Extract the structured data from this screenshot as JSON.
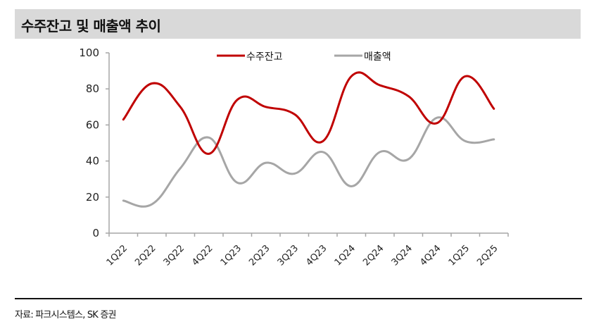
{
  "title": "수주잔고 및 매출액 추이",
  "footer": "자료: 파크시스템스, SK 증권",
  "colors": {
    "backlog": "#c00000",
    "revenue": "#a6a6a6",
    "title_bg": "#d9d9d9"
  },
  "chart_data": {
    "type": "line",
    "title": "수주잔고 및 매출액 추이",
    "xlabel": "",
    "ylabel": "",
    "ylim": [
      0,
      100
    ],
    "yticks": [
      0,
      20,
      40,
      60,
      80,
      100
    ],
    "grid": false,
    "legend_position": "top",
    "categories": [
      "1Q22",
      "2Q22",
      "3Q22",
      "4Q22",
      "1Q23",
      "2Q23",
      "3Q23",
      "4Q23",
      "1Q24",
      "2Q24",
      "3Q24",
      "4Q24",
      "1Q25",
      "2Q25"
    ],
    "series": [
      {
        "name": "수주잔고",
        "color": "#c00000",
        "values": [
          63,
          83,
          70,
          44,
          74,
          70,
          66,
          51,
          87,
          82,
          76,
          61,
          87,
          69
        ]
      },
      {
        "name": "매출액",
        "color": "#a6a6a6",
        "values": [
          18,
          16,
          36,
          53,
          28,
          39,
          33,
          45,
          26,
          45,
          41,
          64,
          51,
          52
        ]
      }
    ],
    "source": "자료: 파크시스템스, SK 증권"
  }
}
